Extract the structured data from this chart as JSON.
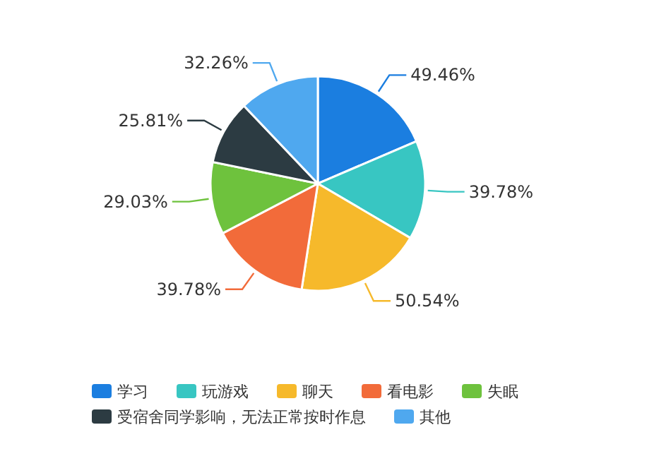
{
  "chart_data": {
    "type": "pie",
    "categories": [
      "学习",
      "玩游戏",
      "聊天",
      "看电影",
      "失眠",
      "受宿舍同学影响，无法正常按时作息",
      "其他"
    ],
    "values": [
      49.46,
      39.78,
      50.54,
      39.78,
      29.03,
      25.81,
      32.26
    ],
    "value_labels": [
      "49.46%",
      "39.78%",
      "50.54%",
      "39.78%",
      "29.03%",
      "25.81%",
      "32.26%"
    ],
    "colors": [
      "#1b7ee0",
      "#38c6c2",
      "#f6b92b",
      "#f26b3a",
      "#6ec23d",
      "#2c3b42",
      "#4fa8ef"
    ],
    "legend": "bottom"
  }
}
